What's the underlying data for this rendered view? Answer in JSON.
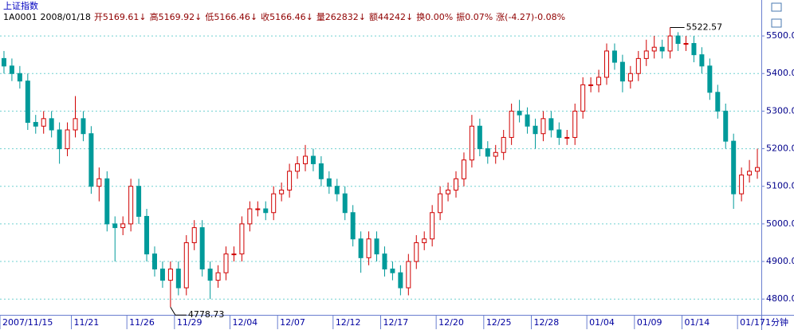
{
  "chart_data": {
    "type": "candlestick",
    "title": "上证指数",
    "info": [
      "1A0001",
      "2008/01/18",
      "开5169.61↓",
      "高5169.92↓",
      "低5166.46↓",
      "收5166.46↓",
      "量262832↓",
      "额44242↓",
      "换0.00%",
      "振0.07%",
      "涨(-4.27)-0.08%"
    ],
    "period": "1分钟",
    "categories": [
      "2007/11/15",
      null,
      null,
      null,
      null,
      null,
      null,
      null,
      null,
      "11/21",
      null,
      null,
      null,
      null,
      null,
      null,
      "11/26",
      null,
      null,
      null,
      null,
      null,
      "11/29",
      null,
      null,
      null,
      null,
      null,
      null,
      "12/04",
      null,
      null,
      null,
      null,
      null,
      "12/07",
      null,
      null,
      null,
      null,
      null,
      null,
      "12/12",
      null,
      null,
      null,
      null,
      null,
      "12/17",
      null,
      null,
      null,
      null,
      null,
      null,
      "12/20",
      null,
      null,
      null,
      null,
      null,
      "12/25",
      null,
      null,
      null,
      null,
      null,
      "12/28",
      null,
      null,
      null,
      null,
      null,
      null,
      "01/04",
      null,
      null,
      null,
      null,
      null,
      "01/09",
      null,
      null,
      null,
      null,
      null,
      "01/14",
      null,
      null,
      null,
      null,
      null,
      null,
      "01/17",
      null,
      null
    ],
    "open": [
      5440,
      5420,
      5400,
      5380,
      5270,
      5260,
      5280,
      5250,
      5200,
      5250,
      5280,
      5240,
      5100,
      5120,
      5000,
      4990,
      5000,
      5100,
      5020,
      4920,
      4880,
      4850,
      4880,
      4830,
      4950,
      4990,
      4880,
      4850,
      4870,
      4920,
      4920,
      5000,
      5040,
      5040,
      5030,
      5080,
      5090,
      5140,
      5160,
      5180,
      5160,
      5120,
      5100,
      5080,
      5030,
      4960,
      4910,
      4960,
      4920,
      4880,
      4870,
      4830,
      4900,
      4950,
      4960,
      5030,
      5080,
      5090,
      5120,
      5170,
      5260,
      5200,
      5180,
      5190,
      5230,
      5300,
      5290,
      5260,
      5240,
      5280,
      5250,
      5230,
      5230,
      5300,
      5370,
      5370,
      5390,
      5460,
      5430,
      5380,
      5400,
      5440,
      5460,
      5470,
      5460,
      5500,
      5480,
      5480,
      5450,
      5420,
      5350,
      5300,
      5220,
      5080,
      5130,
      5140
    ],
    "high": [
      5460,
      5440,
      5420,
      5400,
      5290,
      5300,
      5300,
      5270,
      5270,
      5340,
      5300,
      5260,
      5150,
      5140,
      5020,
      5020,
      5120,
      5120,
      5040,
      4940,
      4900,
      4900,
      4900,
      4970,
      5010,
      5010,
      4900,
      4890,
      4940,
      4940,
      5020,
      5060,
      5060,
      5060,
      5100,
      5110,
      5160,
      5180,
      5210,
      5200,
      5180,
      5140,
      5120,
      5100,
      5050,
      4980,
      4980,
      4980,
      4940,
      4900,
      4890,
      4920,
      4970,
      4980,
      5050,
      5100,
      5110,
      5140,
      5190,
      5290,
      5280,
      5220,
      5210,
      5250,
      5320,
      5330,
      5310,
      5280,
      5300,
      5300,
      5270,
      5250,
      5320,
      5390,
      5390,
      5410,
      5480,
      5480,
      5450,
      5420,
      5460,
      5490,
      5500,
      5490,
      5522.57,
      5510,
      5500,
      5500,
      5470,
      5440,
      5370,
      5320,
      5240,
      5150,
      5170,
      5200
    ],
    "low": [
      5400,
      5380,
      5360,
      5250,
      5240,
      5240,
      5230,
      5160,
      5180,
      5230,
      5220,
      5080,
      5060,
      4980,
      4900,
      4970,
      4980,
      5000,
      4900,
      4860,
      4830,
      4778.73,
      4810,
      4810,
      4930,
      4860,
      4800,
      4830,
      4850,
      4900,
      4900,
      4980,
      5020,
      5010,
      5010,
      5060,
      5070,
      5120,
      5140,
      5140,
      5100,
      5080,
      5060,
      5010,
      4940,
      4870,
      4890,
      4900,
      4860,
      4850,
      4810,
      4810,
      4880,
      4930,
      4940,
      5010,
      5060,
      5070,
      5100,
      5150,
      5180,
      5160,
      5160,
      5170,
      5210,
      5270,
      5240,
      5200,
      5220,
      5230,
      5210,
      5210,
      5210,
      5280,
      5350,
      5350,
      5370,
      5410,
      5350,
      5360,
      5380,
      5420,
      5440,
      5440,
      5440,
      5460,
      5460,
      5430,
      5400,
      5330,
      5280,
      5200,
      5040,
      5060,
      5110,
      5120
    ],
    "close": [
      5420,
      5400,
      5380,
      5270,
      5260,
      5280,
      5250,
      5200,
      5250,
      5280,
      5240,
      5100,
      5120,
      5000,
      4990,
      5000,
      5100,
      5020,
      4920,
      4880,
      4850,
      4880,
      4830,
      4950,
      4990,
      4880,
      4850,
      4870,
      4920,
      4920,
      5000,
      5040,
      5040,
      5030,
      5080,
      5090,
      5140,
      5160,
      5180,
      5160,
      5120,
      5100,
      5080,
      5030,
      4960,
      4910,
      4960,
      4920,
      4880,
      4870,
      4830,
      4900,
      4950,
      4960,
      5030,
      5080,
      5090,
      5120,
      5170,
      5260,
      5200,
      5180,
      5190,
      5230,
      5300,
      5290,
      5260,
      5240,
      5280,
      5250,
      5230,
      5230,
      5300,
      5370,
      5370,
      5390,
      5460,
      5430,
      5380,
      5400,
      5440,
      5460,
      5470,
      5460,
      5500,
      5480,
      5480,
      5450,
      5420,
      5350,
      5300,
      5220,
      5080,
      5130,
      5140,
      5150
    ],
    "up_color": "#d00000",
    "down_color": "#009a9a",
    "ylim": [
      4758,
      5532
    ],
    "yticks": [
      {
        "value": 4800,
        "label": "4800.0"
      },
      {
        "value": 4900,
        "label": "4900.0"
      },
      {
        "value": 5000,
        "label": "5000.0"
      },
      {
        "value": 5100,
        "label": "5100.0"
      },
      {
        "value": 5200,
        "label": "5200.0"
      },
      {
        "value": 5300,
        "label": "5300.0"
      },
      {
        "value": 5400,
        "label": "5400.0"
      },
      {
        "value": 5500,
        "label": "5500.0"
      }
    ],
    "grid": true
  }
}
